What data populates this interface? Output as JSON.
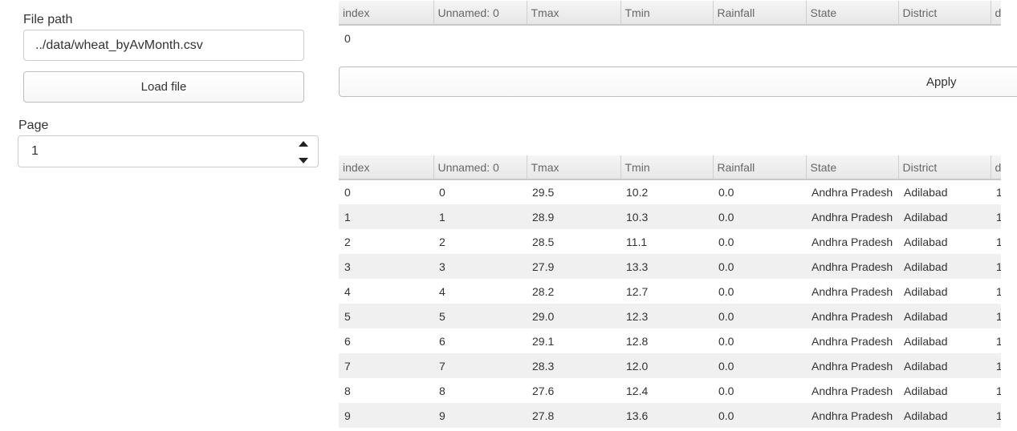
{
  "sidebar": {
    "file_path_label": "File path",
    "file_path_value": "../data/wheat_byAvMonth.csv",
    "load_button": "Load file",
    "page_label": "Page",
    "page_value": "1"
  },
  "filter_table": {
    "columns": [
      "index",
      "Unnamed: 0",
      "Tmax",
      "Tmin",
      "Rainfall",
      "State",
      "District",
      "da"
    ],
    "rows": [
      [
        "0",
        "",
        "",
        "",
        "",
        "",
        "",
        ""
      ]
    ]
  },
  "apply_button": "Apply",
  "data_table": {
    "columns": [
      "index",
      "Unnamed: 0",
      "Tmax",
      "Tmin",
      "Rainfall",
      "State",
      "District",
      "da"
    ],
    "rows": [
      [
        "0",
        "0",
        "29.5",
        "10.2",
        "0.0",
        "Andhra Pradesh",
        "Adilabad",
        "1"
      ],
      [
        "1",
        "1",
        "28.9",
        "10.3",
        "0.0",
        "Andhra Pradesh",
        "Adilabad",
        "1"
      ],
      [
        "2",
        "2",
        "28.5",
        "11.1",
        "0.0",
        "Andhra Pradesh",
        "Adilabad",
        "1"
      ],
      [
        "3",
        "3",
        "27.9",
        "13.3",
        "0.0",
        "Andhra Pradesh",
        "Adilabad",
        "1"
      ],
      [
        "4",
        "4",
        "28.2",
        "12.7",
        "0.0",
        "Andhra Pradesh",
        "Adilabad",
        "1"
      ],
      [
        "5",
        "5",
        "29.0",
        "12.3",
        "0.0",
        "Andhra Pradesh",
        "Adilabad",
        "1"
      ],
      [
        "6",
        "6",
        "29.1",
        "12.8",
        "0.0",
        "Andhra Pradesh",
        "Adilabad",
        "1"
      ],
      [
        "7",
        "7",
        "28.3",
        "12.0",
        "0.0",
        "Andhra Pradesh",
        "Adilabad",
        "1"
      ],
      [
        "8",
        "8",
        "27.6",
        "12.4",
        "0.0",
        "Andhra Pradesh",
        "Adilabad",
        "1"
      ],
      [
        "9",
        "9",
        "27.8",
        "13.6",
        "0.0",
        "Andhra Pradesh",
        "Adilabad",
        "1"
      ]
    ]
  }
}
